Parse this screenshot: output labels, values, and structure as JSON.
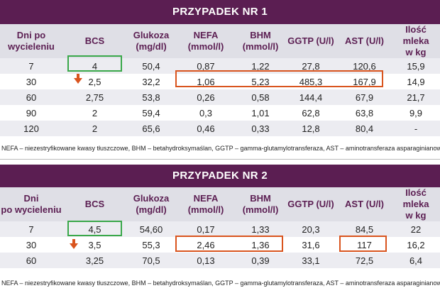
{
  "columns": [
    "Dni po wycieleniu",
    "BCS",
    "Glukoza (mg/dl)",
    "NEFA (mmol/l)",
    "BHM (mmol/l)",
    "GGTP (U/l)",
    "AST (U/l)",
    "Ilość mleka w kg"
  ],
  "colors": {
    "banner": "#5b1e52",
    "header_text": "#5b1e52",
    "highlight_green": "#3aa84a",
    "highlight_orange": "#d9541e"
  },
  "case1": {
    "title": "PRZYPADEK NR 1",
    "header": [
      [
        "Dni po",
        "wycieleniu"
      ],
      [
        "BCS",
        ""
      ],
      [
        "Glukoza",
        "(mg/dl)"
      ],
      [
        "NEFA",
        "(mmol/l)"
      ],
      [
        "BHM",
        "(mmol/l)"
      ],
      [
        "GGTP (U/l)",
        ""
      ],
      [
        "AST (U/l)",
        ""
      ],
      [
        "Ilość mleka",
        "w kg"
      ]
    ],
    "rows": [
      [
        "7",
        "4",
        "50,4",
        "0,87",
        "1,22",
        "27,8",
        "120,6",
        "15,9"
      ],
      [
        "30",
        "2,5",
        "32,2",
        "1,06",
        "5,23",
        "485,3",
        "167,9",
        "14,9"
      ],
      [
        "60",
        "2,75",
        "53,8",
        "0,26",
        "0,58",
        "144,4",
        "67,9",
        "21,7"
      ],
      [
        "90",
        "2",
        "59,4",
        "0,3",
        "1,01",
        "62,8",
        "63,8",
        "9,9"
      ],
      [
        "120",
        "2",
        "65,6",
        "0,46",
        "0,33",
        "12,8",
        "80,4",
        "-"
      ]
    ],
    "footnote": "NEFA – niezestryfikowane kwasy tłuszczowe, BHM – betahydroksymaślan, GGTP – gamma-glutamylotransferaza, AST – aminotransferaza asparaginianowa"
  },
  "case2": {
    "title": "PRZYPADEK NR 2",
    "header": [
      [
        "Dni",
        "po wycieleniu"
      ],
      [
        "BCS",
        ""
      ],
      [
        "Glukoza",
        "(mg/dl)"
      ],
      [
        "NEFA",
        "(mmol/l)"
      ],
      [
        "BHM",
        "(mmol/l)"
      ],
      [
        "GGTP (U/l)",
        ""
      ],
      [
        "AST (U/l)",
        ""
      ],
      [
        "Ilość mleka",
        "w kg"
      ]
    ],
    "rows": [
      [
        "7",
        "4,5",
        "54,60",
        "0,17",
        "1,33",
        "20,3",
        "84,5",
        "22"
      ],
      [
        "30",
        "3,5",
        "55,3",
        "2,46",
        "1,36",
        "31,6",
        "117",
        "16,2"
      ],
      [
        "60",
        "3,25",
        "70,5",
        "0,13",
        "0,39",
        "33,1",
        "72,5",
        "6,4"
      ]
    ],
    "footnote": "NEFA – niezestryfikowane kwasy tłuszczowe, BHM – betahydroksymaślan, GGTP – gamma-glutamylotransferaza, AST – aminotransferaza asparaginianowa"
  }
}
